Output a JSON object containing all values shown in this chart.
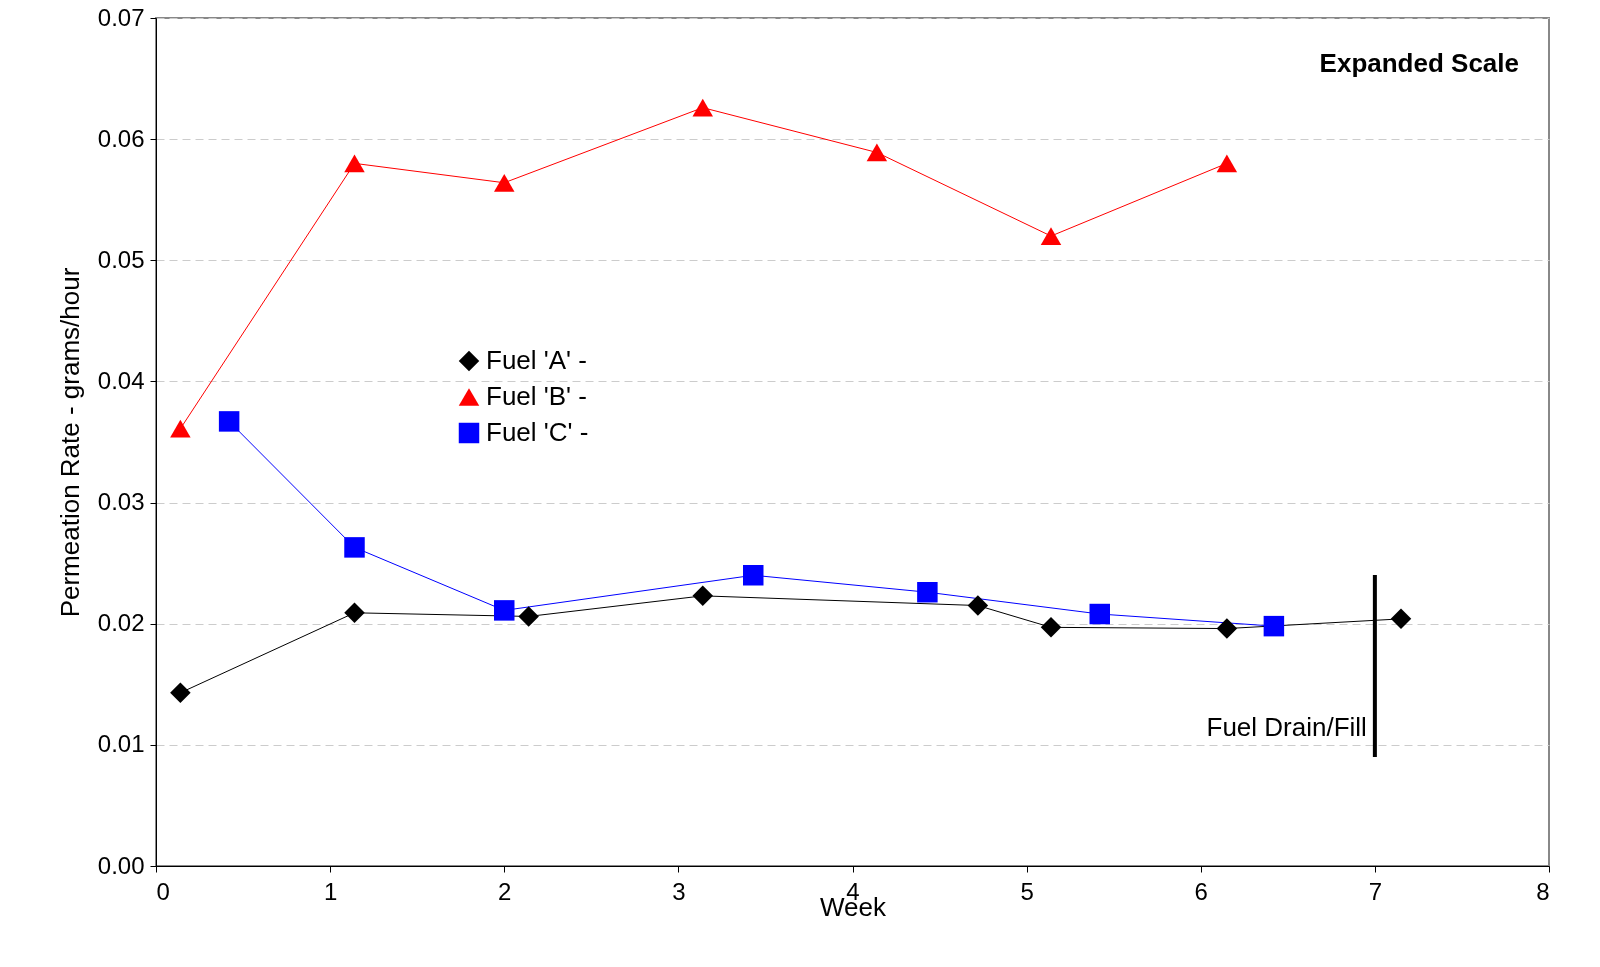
{
  "chart_data": {
    "type": "line",
    "xlabel": "Week",
    "ylabel": "Permeation Rate - grams/hour",
    "annotations": [
      "Expanded Scale"
    ],
    "xlim": [
      0,
      8
    ],
    "xticks": [
      0,
      1,
      2,
      3,
      4,
      5,
      6,
      7,
      8
    ],
    "ylim": [
      0,
      0.07
    ],
    "yticks": [
      {
        "value": 0,
        "label": "0.00"
      },
      0.01,
      0.02,
      0.03,
      0.04,
      0.05,
      0.06,
      0.07
    ],
    "grid": "y",
    "legend": "left",
    "line_style": "solid",
    "ref_lines": [
      {
        "axis": "x",
        "value": 7,
        "label": "Fuel Drain/Fill",
        "color": "#000000"
      }
    ],
    "series": [
      {
        "name": "Fuel 'A' -",
        "color": "#000000",
        "marker": "diamond",
        "x": [
          0.14,
          1.14,
          2.14,
          3.14,
          4.72,
          5.14,
          6.15,
          7.15
        ],
        "values": [
          0.0143,
          0.0209,
          0.0206,
          0.0223,
          0.0215,
          0.0197,
          0.0196,
          0.0204
        ]
      },
      {
        "name": "Fuel 'B' -",
        "color": "#ff0000",
        "marker": "triangle",
        "x": [
          0.14,
          1.14,
          2.0,
          3.14,
          4.14,
          5.14,
          6.15
        ],
        "values": [
          0.0361,
          0.058,
          0.0564,
          0.0626,
          0.0589,
          0.052,
          0.058
        ]
      },
      {
        "name": "Fuel 'C' -",
        "color": "#0000ff",
        "marker": "square",
        "x": [
          0.42,
          1.14,
          2.0,
          3.43,
          4.43,
          5.42,
          6.42
        ],
        "values": [
          0.0367,
          0.0263,
          0.0211,
          0.024,
          0.0226,
          0.0208,
          0.0198
        ]
      }
    ]
  }
}
